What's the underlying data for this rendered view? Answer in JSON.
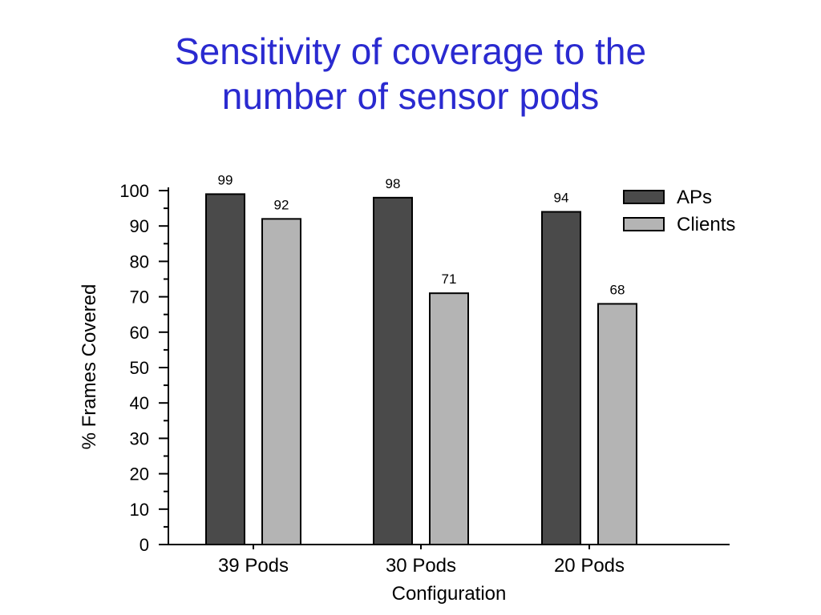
{
  "slide": {
    "title_line1": "Sensitivity of coverage to the",
    "title_line2": "number of sensor pods"
  },
  "chart_data": {
    "type": "bar",
    "categories": [
      "39 Pods",
      "30 Pods",
      "20 Pods"
    ],
    "series": [
      {
        "name": "APs",
        "values": [
          99,
          98,
          94
        ],
        "color": "#4a4a4a"
      },
      {
        "name": "Clients",
        "values": [
          92,
          71,
          68
        ],
        "color": "#b4b4b4"
      }
    ],
    "data_labels": [
      [
        "99",
        "92"
      ],
      [
        "98",
        "71"
      ],
      [
        "94",
        "68"
      ]
    ],
    "xlabel": "Configuration",
    "ylabel": "% Frames Covered",
    "ylim": [
      0,
      100
    ],
    "yticks": [
      0,
      10,
      20,
      30,
      40,
      50,
      60,
      70,
      80,
      90,
      100
    ],
    "grid": false,
    "legend": "top-right"
  }
}
